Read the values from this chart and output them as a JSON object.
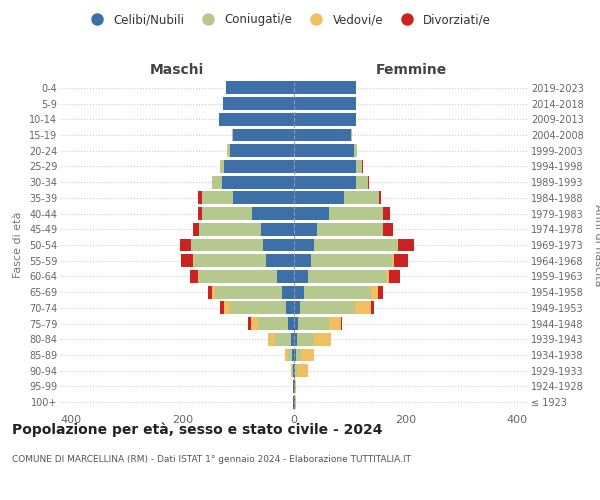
{
  "age_groups": [
    "100+",
    "95-99",
    "90-94",
    "85-89",
    "80-84",
    "75-79",
    "70-74",
    "65-69",
    "60-64",
    "55-59",
    "50-54",
    "45-49",
    "40-44",
    "35-39",
    "30-34",
    "25-29",
    "20-24",
    "15-19",
    "10-14",
    "5-9",
    "0-4"
  ],
  "birth_years": [
    "≤ 1923",
    "1924-1928",
    "1929-1933",
    "1934-1938",
    "1939-1943",
    "1944-1948",
    "1949-1953",
    "1954-1958",
    "1959-1963",
    "1964-1968",
    "1969-1973",
    "1974-1978",
    "1979-1983",
    "1984-1988",
    "1989-1993",
    "1994-1998",
    "1999-2003",
    "2004-2008",
    "2009-2013",
    "2014-2018",
    "2019-2023"
  ],
  "colors": {
    "celibi": "#3d6fa8",
    "coniugati": "#b5c98e",
    "vedovi": "#f0c060",
    "divorziati": "#cc2222"
  },
  "maschi": {
    "celibi": [
      2,
      1,
      1,
      3,
      5,
      10,
      15,
      22,
      30,
      50,
      55,
      60,
      75,
      110,
      130,
      125,
      115,
      110,
      135,
      128,
      122
    ],
    "coniugati": [
      0,
      0,
      2,
      8,
      30,
      55,
      100,
      120,
      140,
      130,
      130,
      110,
      90,
      55,
      18,
      8,
      3,
      1,
      0,
      0,
      0
    ],
    "vedovi": [
      0,
      0,
      3,
      6,
      12,
      12,
      10,
      5,
      2,
      2,
      0,
      0,
      0,
      0,
      0,
      0,
      2,
      0,
      0,
      0,
      0
    ],
    "divorziati": [
      0,
      0,
      0,
      0,
      0,
      5,
      8,
      8,
      15,
      20,
      20,
      12,
      8,
      8,
      0,
      0,
      0,
      0,
      0,
      0,
      0
    ]
  },
  "femmine": {
    "celibi": [
      2,
      1,
      1,
      3,
      5,
      8,
      10,
      18,
      25,
      30,
      35,
      42,
      62,
      90,
      112,
      112,
      108,
      102,
      112,
      112,
      112
    ],
    "coniugati": [
      0,
      0,
      5,
      10,
      30,
      55,
      100,
      120,
      140,
      145,
      150,
      118,
      98,
      62,
      20,
      10,
      5,
      2,
      0,
      0,
      0
    ],
    "vedovi": [
      2,
      3,
      20,
      22,
      32,
      22,
      28,
      12,
      6,
      5,
      2,
      0,
      0,
      0,
      0,
      0,
      0,
      0,
      0,
      0,
      0
    ],
    "divorziati": [
      0,
      0,
      0,
      0,
      0,
      2,
      5,
      10,
      20,
      25,
      28,
      18,
      12,
      5,
      2,
      2,
      0,
      0,
      0,
      0,
      0
    ]
  },
  "xlim": 420,
  "title": "Popolazione per età, sesso e stato civile - 2024",
  "subtitle": "COMUNE DI MARCELLINA (RM) - Dati ISTAT 1° gennaio 2024 - Elaborazione TUTTITALIA.IT",
  "ylabel_left": "Fasce di età",
  "ylabel_right": "Anni di nascita",
  "xlabel_left": "Maschi",
  "xlabel_right": "Femmine",
  "background_color": "#ffffff",
  "grid_color": "#cccccc",
  "legend_labels": [
    "Celibi/Nubili",
    "Coniugati/e",
    "Vedovi/e",
    "Divorziati/e"
  ],
  "legend_colors": [
    "#3d6fa8",
    "#b5c98e",
    "#f0c060",
    "#cc2222"
  ]
}
